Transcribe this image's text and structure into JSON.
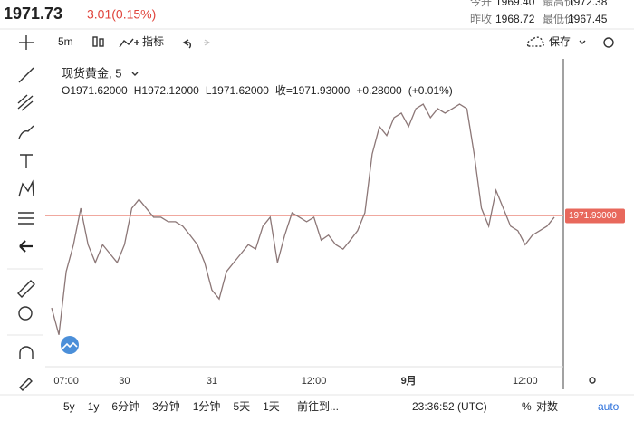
{
  "header": {
    "price": "1971.73",
    "change": "3.01(0.15%)",
    "stats": [
      [
        "今开",
        "1969.40"
      ],
      [
        "最高价",
        "1972.38"
      ],
      [
        "昨收",
        "1968.72"
      ],
      [
        "最低价",
        "1967.45"
      ]
    ]
  },
  "toolbar": {
    "interval": "5m",
    "indicators": "指标",
    "save": "保存"
  },
  "legend": {
    "symbol": "现货黄金, 5",
    "open": "O1971.62000",
    "high": "H1972.12000",
    "low": "L1971.62000",
    "close": "收=1971.93000",
    "change": "+0.28000",
    "change_pct": "(+0.01%)"
  },
  "chart_data": {
    "type": "line",
    "color": "#8c7777",
    "categories": [
      null,
      null,
      "07:00",
      null,
      null,
      null,
      null,
      null,
      null,
      null,
      "30",
      null,
      null,
      null,
      null,
      null,
      null,
      null,
      null,
      null,
      null,
      null,
      "31",
      null,
      null,
      null,
      null,
      null,
      null,
      null,
      null,
      null,
      null,
      null,
      null,
      null,
      "12:00",
      null,
      null,
      null,
      null,
      null,
      null,
      null,
      null,
      null,
      null,
      null,
      null,
      "9月",
      null,
      null,
      null,
      null,
      null,
      null,
      null,
      null,
      null,
      null,
      null,
      null,
      null,
      null,
      null,
      "12:00",
      null,
      null,
      null,
      null
    ],
    "values": [
      1955.5,
      1950.7,
      1962.0,
      1966.8,
      1973.3,
      1966.8,
      1963.6,
      1966.8,
      1965.2,
      1963.6,
      1966.8,
      1973.3,
      1974.9,
      1973.3,
      1971.7,
      1971.7,
      1970.9,
      1970.9,
      1970.1,
      1968.5,
      1966.8,
      1963.6,
      1958.7,
      1957.1,
      1962.0,
      1963.6,
      1965.2,
      1966.8,
      1966.0,
      1970.1,
      1971.7,
      1963.6,
      1968.5,
      1972.5,
      1971.7,
      1970.9,
      1971.7,
      1967.6,
      1968.5,
      1966.8,
      1966.0,
      1967.6,
      1969.3,
      1972.5,
      1983.0,
      1987.9,
      1986.3,
      1989.5,
      1990.3,
      1987.9,
      1991.1,
      1991.9,
      1989.5,
      1991.1,
      1990.3,
      1991.1,
      1991.9,
      1991.1,
      1983.0,
      1973.3,
      1970.1,
      1976.5,
      1973.3,
      1970.1,
      1969.3,
      1966.8,
      1968.5,
      1969.3,
      1970.1,
      1971.7
    ],
    "ylim": [
      1945,
      2000
    ],
    "price_line": {
      "value": 1971.93,
      "label": "1971.93000"
    }
  },
  "bottom_bar": {
    "ranges": [
      "5y",
      "1y",
      "6分钟",
      "3分钟",
      "1分钟",
      "5天",
      "1天"
    ],
    "goto": "前往到...",
    "time": "23:36:52 (UTC)",
    "percent": "%",
    "log": "对数",
    "auto": "auto"
  }
}
